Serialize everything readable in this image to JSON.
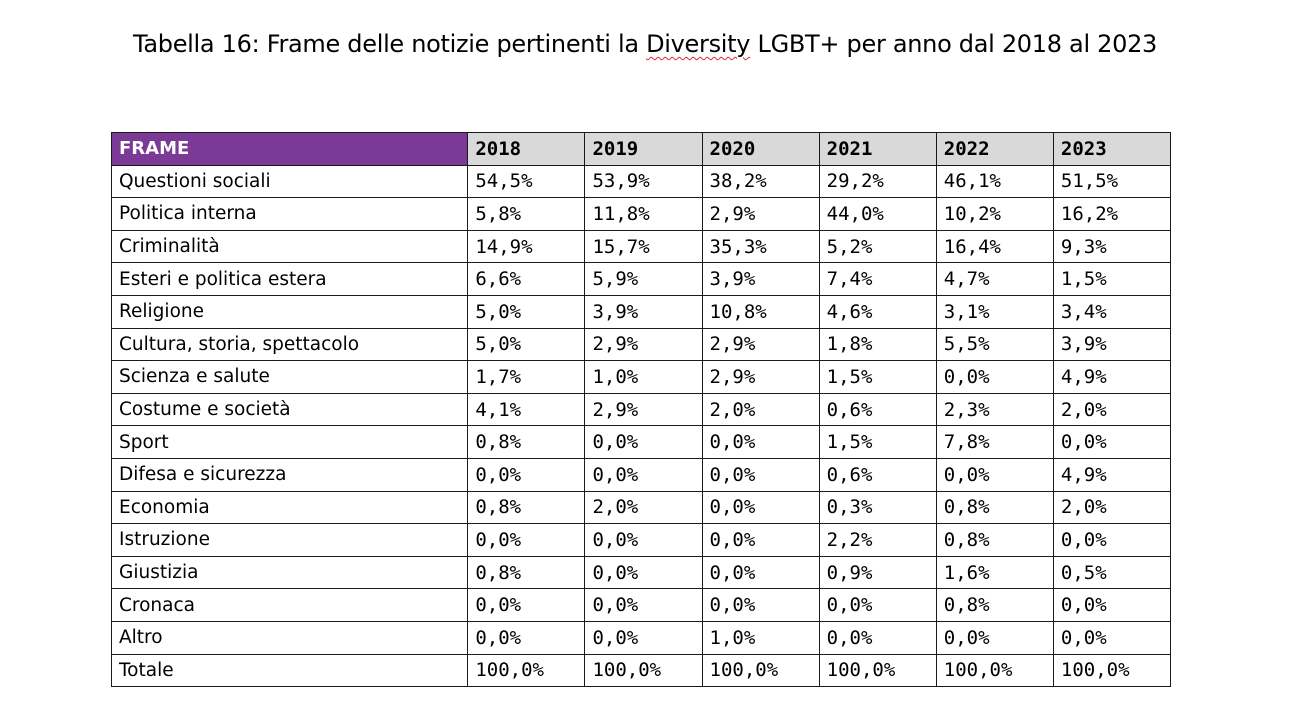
{
  "caption": {
    "before": "Tabella 16: Frame delle notizie pertinenti la ",
    "underlined": "Diversity",
    "after": " LGBT+ per anno dal 2018 al 2023"
  },
  "table": {
    "header": [
      "FRAME",
      "2018",
      "2019",
      "2020",
      "2021",
      "2022",
      "2023"
    ],
    "rows": [
      {
        "label": "Questioni sociali",
        "values": [
          "54,5%",
          "53,9%",
          "38,2%",
          "29,2%",
          "46,1%",
          "51,5%"
        ]
      },
      {
        "label": "Politica interna",
        "values": [
          "5,8%",
          "11,8%",
          "2,9%",
          "44,0%",
          "10,2%",
          "16,2%"
        ]
      },
      {
        "label": "Criminalità",
        "values": [
          "14,9%",
          "15,7%",
          "35,3%",
          "5,2%",
          "16,4%",
          "9,3%"
        ]
      },
      {
        "label": "Esteri e politica estera",
        "values": [
          "6,6%",
          "5,9%",
          "3,9%",
          "7,4%",
          "4,7%",
          "1,5%"
        ]
      },
      {
        "label": "Religione",
        "values": [
          "5,0%",
          "3,9%",
          "10,8%",
          "4,6%",
          "3,1%",
          "3,4%"
        ]
      },
      {
        "label": "Cultura, storia, spettacolo",
        "values": [
          "5,0%",
          "2,9%",
          "2,9%",
          "1,8%",
          "5,5%",
          "3,9%"
        ]
      },
      {
        "label": "Scienza e salute",
        "values": [
          "1,7%",
          "1,0%",
          "2,9%",
          "1,5%",
          "0,0%",
          "4,9%"
        ]
      },
      {
        "label": "Costume e società",
        "values": [
          "4,1%",
          "2,9%",
          "2,0%",
          "0,6%",
          "2,3%",
          "2,0%"
        ]
      },
      {
        "label": "Sport",
        "values": [
          "0,8%",
          "0,0%",
          "0,0%",
          "1,5%",
          "7,8%",
          "0,0%"
        ]
      },
      {
        "label": "Difesa e sicurezza",
        "values": [
          "0,0%",
          "0,0%",
          "0,0%",
          "0,6%",
          "0,0%",
          "4,9%"
        ]
      },
      {
        "label": "Economia",
        "values": [
          "0,8%",
          "2,0%",
          "0,0%",
          "0,3%",
          "0,8%",
          "2,0%"
        ]
      },
      {
        "label": "Istruzione",
        "values": [
          "0,0%",
          "0,0%",
          "0,0%",
          "2,2%",
          "0,8%",
          "0,0%"
        ]
      },
      {
        "label": "Giustizia",
        "values": [
          "0,8%",
          "0,0%",
          "0,0%",
          "0,9%",
          "1,6%",
          "0,5%"
        ]
      },
      {
        "label": "Cronaca",
        "values": [
          "0,0%",
          "0,0%",
          "0,0%",
          "0,0%",
          "0,8%",
          "0,0%"
        ]
      },
      {
        "label": "Altro",
        "values": [
          "0,0%",
          "0,0%",
          "1,0%",
          "0,0%",
          "0,0%",
          "0,0%"
        ]
      },
      {
        "label": "Totale",
        "values": [
          "100,0%",
          "100,0%",
          "100,0%",
          "100,0%",
          "100,0%",
          "100,0%"
        ]
      }
    ]
  },
  "colors": {
    "header_label_bg": "#7a3a96",
    "header_year_bg": "#d9d9d9",
    "spellcheck_underline": "#e0283a"
  }
}
